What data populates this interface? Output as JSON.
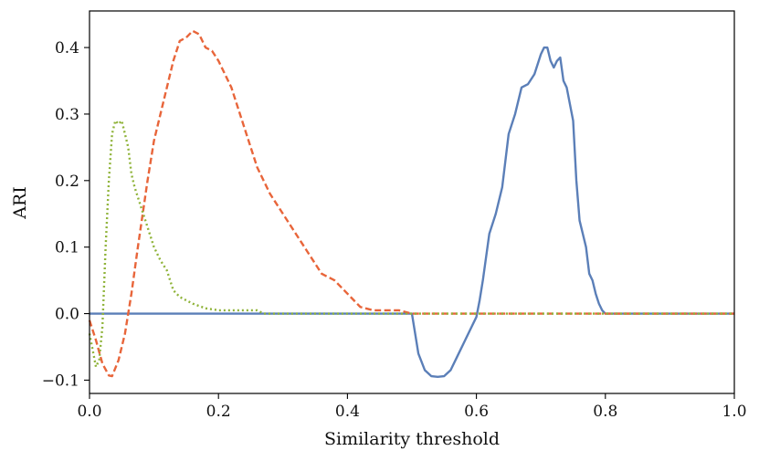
{
  "chart_data": {
    "type": "line",
    "title": "",
    "xlabel": "Similarity threshold",
    "ylabel": "ARI",
    "xlim": [
      0.0,
      1.0
    ],
    "ylim": [
      -0.12,
      0.455
    ],
    "xticks": [
      0.0,
      0.2,
      0.4,
      0.6,
      0.8,
      1.0
    ],
    "xtick_labels": [
      "0.0",
      "0.2",
      "0.4",
      "0.6",
      "0.8",
      "1.0"
    ],
    "yticks": [
      -0.1,
      0.0,
      0.1,
      0.2,
      0.3,
      0.4
    ],
    "ytick_labels": [
      "−0.1",
      "0.0",
      "0.1",
      "0.2",
      "0.3",
      "0.4"
    ],
    "grid": false,
    "legend": "none",
    "series": [
      {
        "name": "solid blue",
        "color": "#5b7fb8",
        "style": "solid",
        "x": [
          0.0,
          0.5,
          0.505,
          0.51,
          0.52,
          0.53,
          0.54,
          0.55,
          0.56,
          0.57,
          0.58,
          0.59,
          0.6,
          0.605,
          0.61,
          0.62,
          0.63,
          0.64,
          0.65,
          0.66,
          0.67,
          0.68,
          0.69,
          0.7,
          0.705,
          0.71,
          0.715,
          0.72,
          0.725,
          0.73,
          0.735,
          0.74,
          0.75,
          0.755,
          0.76,
          0.77,
          0.775,
          0.78,
          0.785,
          0.79,
          0.795,
          0.8,
          0.805,
          1.0
        ],
        "y": [
          0.0,
          0.0,
          -0.03,
          -0.06,
          -0.085,
          -0.094,
          -0.095,
          -0.094,
          -0.085,
          -0.065,
          -0.045,
          -0.025,
          -0.005,
          0.02,
          0.05,
          0.12,
          0.15,
          0.19,
          0.27,
          0.3,
          0.34,
          0.345,
          0.36,
          0.39,
          0.4,
          0.4,
          0.38,
          0.37,
          0.38,
          0.385,
          0.35,
          0.34,
          0.29,
          0.2,
          0.14,
          0.1,
          0.06,
          0.05,
          0.03,
          0.015,
          0.005,
          0.0,
          0.0,
          0.0
        ]
      },
      {
        "name": "dashed orange",
        "color": "#e8653a",
        "style": "dashed",
        "x": [
          0.0,
          0.01,
          0.02,
          0.03,
          0.035,
          0.045,
          0.055,
          0.065,
          0.075,
          0.09,
          0.1,
          0.11,
          0.12,
          0.13,
          0.14,
          0.15,
          0.16,
          0.17,
          0.18,
          0.19,
          0.2,
          0.22,
          0.24,
          0.26,
          0.28,
          0.3,
          0.32,
          0.34,
          0.36,
          0.38,
          0.4,
          0.42,
          0.44,
          0.46,
          0.48,
          0.5,
          1.0
        ],
        "y": [
          -0.01,
          -0.04,
          -0.075,
          -0.093,
          -0.094,
          -0.07,
          -0.03,
          0.03,
          0.1,
          0.2,
          0.26,
          0.3,
          0.34,
          0.38,
          0.41,
          0.415,
          0.425,
          0.42,
          0.4,
          0.395,
          0.38,
          0.34,
          0.28,
          0.22,
          0.18,
          0.15,
          0.12,
          0.09,
          0.06,
          0.05,
          0.03,
          0.01,
          0.005,
          0.005,
          0.005,
          0.0,
          0.0
        ]
      },
      {
        "name": "dotted green",
        "color": "#8fb339",
        "style": "dotted",
        "x": [
          0.0,
          0.005,
          0.01,
          0.015,
          0.02,
          0.025,
          0.03,
          0.035,
          0.04,
          0.045,
          0.05,
          0.055,
          0.06,
          0.065,
          0.07,
          0.08,
          0.09,
          0.1,
          0.11,
          0.12,
          0.13,
          0.14,
          0.15,
          0.16,
          0.18,
          0.2,
          0.22,
          0.24,
          0.26,
          0.27,
          1.0
        ],
        "y": [
          -0.03,
          -0.055,
          -0.08,
          -0.07,
          -0.02,
          0.1,
          0.2,
          0.27,
          0.29,
          0.285,
          0.29,
          0.27,
          0.25,
          0.21,
          0.19,
          0.16,
          0.13,
          0.1,
          0.08,
          0.065,
          0.035,
          0.025,
          0.02,
          0.015,
          0.008,
          0.005,
          0.005,
          0.005,
          0.005,
          0.0,
          0.0
        ]
      }
    ]
  }
}
